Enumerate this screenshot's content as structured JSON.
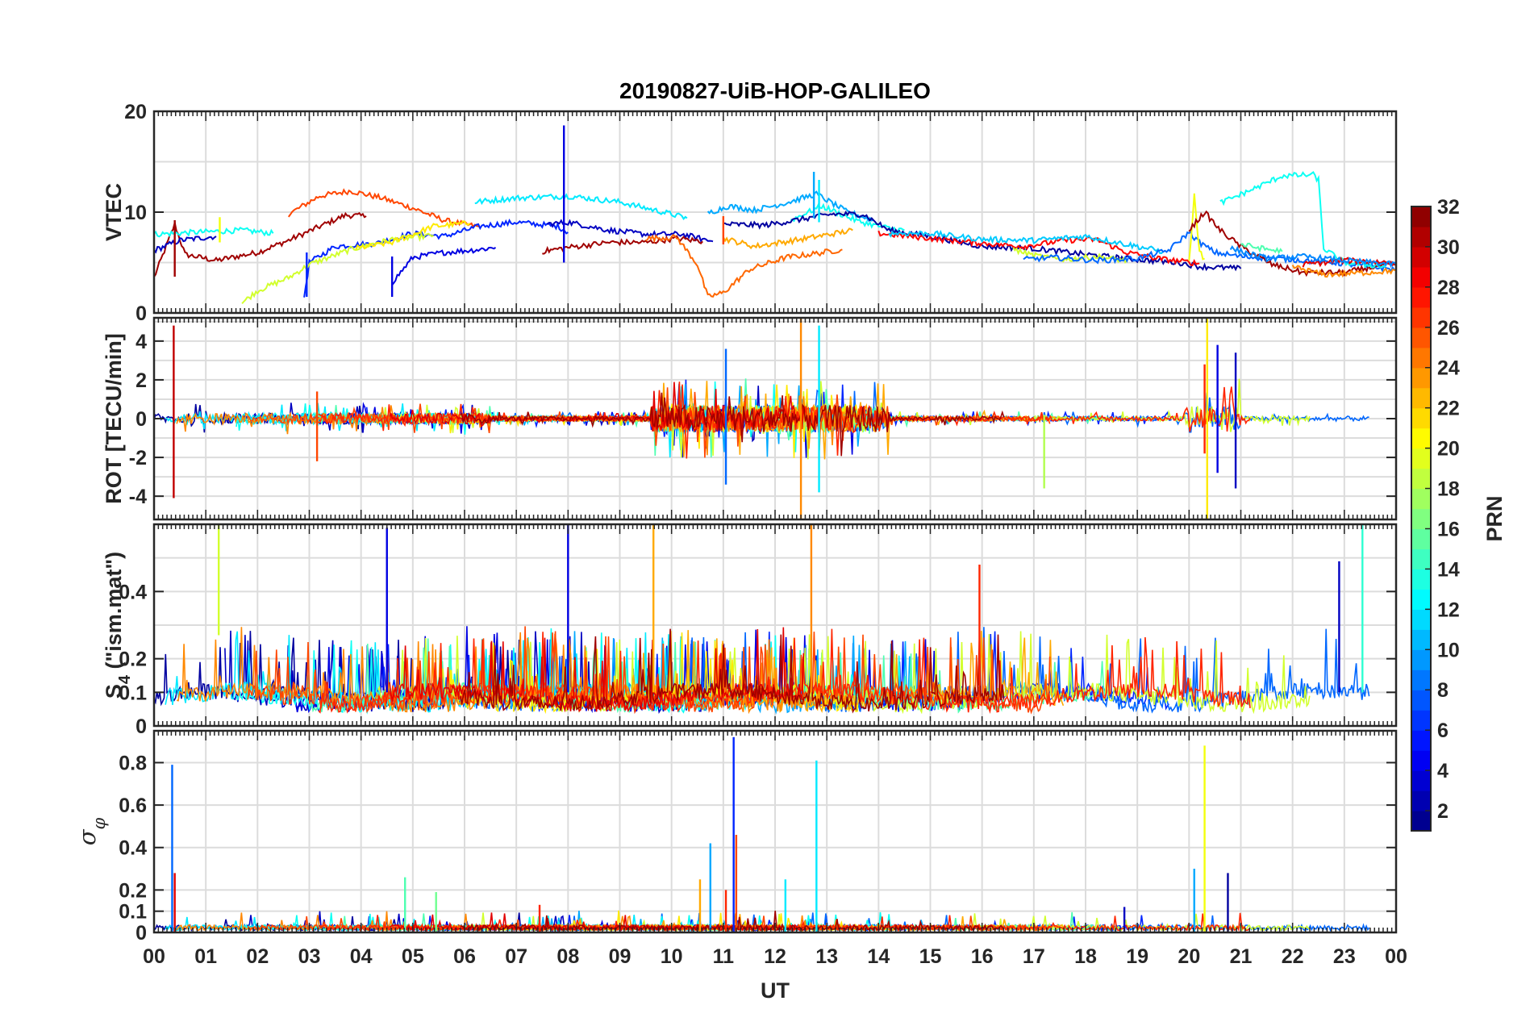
{
  "chart_data": {
    "type": "line",
    "title": "20190827-UiB-HOP-GALILEO",
    "xlabel": "UT",
    "x_ticks": [
      "00",
      "01",
      "02",
      "03",
      "04",
      "05",
      "06",
      "07",
      "08",
      "09",
      "10",
      "11",
      "12",
      "13",
      "14",
      "15",
      "16",
      "17",
      "18",
      "19",
      "20",
      "21",
      "22",
      "23",
      "00"
    ],
    "xlim": [
      0,
      24
    ],
    "panels": [
      {
        "id": "vtec",
        "ylabel": "VTEC",
        "ylim": [
          0,
          20
        ],
        "yticks": [
          {
            "v": 0,
            "label": "0"
          },
          {
            "v": 10,
            "label": "10"
          },
          {
            "v": 20,
            "label": "20"
          }
        ],
        "grid_y": [
          0,
          5,
          10,
          15,
          20
        ]
      },
      {
        "id": "rot",
        "ylabel": "ROT [TECU/min]",
        "ylim": [
          -5.2,
          5.2
        ],
        "yticks": [
          {
            "v": -4,
            "label": "-4"
          },
          {
            "v": -2,
            "label": "-2"
          },
          {
            "v": 0,
            "label": "0"
          },
          {
            "v": 2,
            "label": "2"
          },
          {
            "v": 4,
            "label": "4"
          }
        ],
        "grid_y": [
          -4,
          -3,
          -2,
          -1,
          0,
          1,
          2,
          3,
          4,
          5
        ]
      },
      {
        "id": "s4",
        "ylabel": "S",
        "ylabel_sub": "4",
        "ylabel_rest": " (\"ism.mat\")",
        "ylim": [
          0,
          0.6
        ],
        "yticks": [
          {
            "v": 0,
            "label": "0"
          },
          {
            "v": 0.1,
            "label": "0.1"
          },
          {
            "v": 0.2,
            "label": "0.2"
          },
          {
            "v": 0.4,
            "label": "0.4"
          }
        ],
        "grid_y": [
          0.1,
          0.2,
          0.3,
          0.4,
          0.5,
          0.6
        ]
      },
      {
        "id": "sigma",
        "ylabel": "σ",
        "ylabel_sub": "φ",
        "ylim": [
          0,
          0.95
        ],
        "yticks": [
          {
            "v": 0,
            "label": "0"
          },
          {
            "v": 0.1,
            "label": "0.1"
          },
          {
            "v": 0.2,
            "label": "0.2"
          },
          {
            "v": 0.4,
            "label": "0.4"
          },
          {
            "v": 0.6,
            "label": "0.6"
          },
          {
            "v": 0.8,
            "label": "0.8"
          }
        ],
        "grid_y": [
          0.1,
          0.2,
          0.4,
          0.6,
          0.8
        ]
      }
    ],
    "colorbar": {
      "label": "PRN",
      "range": [
        1,
        32
      ],
      "ticks": [
        "2",
        "4",
        "6",
        "8",
        "10",
        "12",
        "14",
        "16",
        "18",
        "20",
        "22",
        "24",
        "26",
        "28",
        "30",
        "32"
      ],
      "colormap": "jet"
    },
    "vtec_series": [
      {
        "prn": 31,
        "points": [
          [
            0,
            3.5
          ],
          [
            0.4,
            8.8
          ],
          [
            0.6,
            5.8
          ],
          [
            1.2,
            5.2
          ],
          [
            2.0,
            6.0
          ],
          [
            2.6,
            7.2
          ],
          [
            3.3,
            8.8
          ],
          [
            3.7,
            9.7
          ],
          [
            4.1,
            9.6
          ]
        ]
      },
      {
        "prn": 26,
        "points": [
          [
            2.6,
            9.8
          ],
          [
            3.2,
            11.6
          ],
          [
            3.8,
            12.1
          ],
          [
            4.4,
            11.4
          ],
          [
            5.0,
            10.4
          ],
          [
            5.6,
            9.2
          ],
          [
            6.3,
            8.5
          ]
        ]
      },
      {
        "prn": 3,
        "points": [
          [
            0,
            6.2
          ],
          [
            0.5,
            7.2
          ],
          [
            1.2,
            7.6
          ]
        ]
      },
      {
        "prn": 13,
        "points": [
          [
            0,
            7.8
          ],
          [
            0.8,
            8.0
          ],
          [
            1.7,
            8.2
          ],
          [
            2.3,
            7.9
          ]
        ]
      },
      {
        "prn": 6,
        "points": [
          [
            2.9,
            1.6
          ],
          [
            3.0,
            5.0
          ],
          [
            3.5,
            6.6
          ],
          [
            4.3,
            6.9
          ],
          [
            5.0,
            7.9
          ],
          [
            5.6,
            7.6
          ],
          [
            6.3,
            8.6
          ],
          [
            7.0,
            9.0
          ],
          [
            7.8,
            8.6
          ],
          [
            8.0,
            8.0
          ]
        ]
      },
      {
        "prn": 19,
        "points": [
          [
            1.7,
            1.0
          ],
          [
            2.0,
            2.2
          ],
          [
            2.6,
            3.5
          ],
          [
            3.0,
            4.8
          ],
          [
            3.8,
            6.3
          ],
          [
            4.6,
            7.3
          ],
          [
            5.4,
            7.7
          ]
        ]
      },
      {
        "prn": 21,
        "points": [
          [
            3.9,
            6.4
          ],
          [
            4.6,
            7.0
          ],
          [
            5.4,
            8.6
          ],
          [
            6.1,
            8.9
          ]
        ]
      },
      {
        "prn": 4,
        "points": [
          [
            4.6,
            3.0
          ],
          [
            5.0,
            5.5
          ],
          [
            5.6,
            6.0
          ],
          [
            6.3,
            6.3
          ],
          [
            6.6,
            6.5
          ]
        ]
      },
      {
        "prn": 12,
        "points": [
          [
            6.2,
            11.0
          ],
          [
            7.0,
            11.4
          ],
          [
            8.0,
            11.6
          ],
          [
            9.0,
            11.0
          ],
          [
            10.0,
            9.8
          ],
          [
            10.3,
            9.4
          ]
        ]
      },
      {
        "prn": 3,
        "points": [
          [
            7.6,
            8.8
          ],
          [
            8.0,
            9.0
          ],
          [
            8.8,
            8.2
          ],
          [
            9.5,
            7.8
          ],
          [
            10.2,
            7.8
          ],
          [
            10.8,
            7.1
          ]
        ]
      },
      {
        "prn": 31,
        "points": [
          [
            7.5,
            6.1
          ],
          [
            8.0,
            6.5
          ],
          [
            8.8,
            7.0
          ],
          [
            9.5,
            7.0
          ],
          [
            10.1,
            7.4
          ],
          [
            10.6,
            7.1
          ]
        ]
      },
      {
        "prn": 25,
        "points": [
          [
            9.5,
            7.4
          ],
          [
            10.1,
            7.5
          ],
          [
            10.5,
            4.8
          ],
          [
            10.7,
            1.6
          ],
          [
            11.0,
            2.0
          ],
          [
            11.5,
            4.3
          ],
          [
            12.2,
            5.5
          ],
          [
            12.8,
            5.9
          ],
          [
            13.3,
            6.3
          ]
        ]
      },
      {
        "prn": 23,
        "points": [
          [
            11.0,
            7.4
          ],
          [
            11.6,
            6.6
          ],
          [
            12.5,
            7.3
          ],
          [
            13.5,
            8.2
          ]
        ]
      },
      {
        "prn": 10,
        "points": [
          [
            10.7,
            9.9
          ],
          [
            11.1,
            10.6
          ],
          [
            11.6,
            10.2
          ],
          [
            12.2,
            10.9
          ],
          [
            12.8,
            11.8
          ],
          [
            13.4,
            10.0
          ],
          [
            13.9,
            9.2
          ]
        ]
      },
      {
        "prn": 13,
        "points": [
          [
            12.3,
            9.2
          ],
          [
            12.9,
            10.6
          ],
          [
            13.6,
            9.1
          ],
          [
            14.1,
            8.5
          ],
          [
            14.5,
            8.2
          ]
        ]
      },
      {
        "prn": 2,
        "points": [
          [
            11.0,
            8.8
          ],
          [
            11.8,
            8.7
          ],
          [
            12.4,
            9.2
          ],
          [
            13.1,
            9.8
          ],
          [
            13.7,
            9.8
          ],
          [
            14.2,
            8.2
          ],
          [
            15.0,
            7.6
          ],
          [
            16.0,
            6.6
          ],
          [
            17.0,
            6.4
          ],
          [
            18.0,
            5.8
          ],
          [
            19.0,
            5.3
          ],
          [
            19.8,
            5.0
          ],
          [
            20.2,
            4.6
          ],
          [
            21.0,
            4.4
          ]
        ]
      },
      {
        "prn": 28,
        "points": [
          [
            14.0,
            7.9
          ],
          [
            14.8,
            7.5
          ],
          [
            15.8,
            7.0
          ],
          [
            16.8,
            6.6
          ],
          [
            17.6,
            7.2
          ],
          [
            18.2,
            7.3
          ],
          [
            18.8,
            6.0
          ],
          [
            19.4,
            5.4
          ],
          [
            20.2,
            4.9
          ]
        ]
      },
      {
        "prn": 11,
        "points": [
          [
            14.2,
            7.9
          ],
          [
            15.0,
            7.9
          ],
          [
            16.0,
            7.3
          ],
          [
            17.0,
            7.2
          ],
          [
            18.0,
            7.6
          ],
          [
            18.8,
            6.8
          ],
          [
            19.5,
            6.1
          ]
        ]
      },
      {
        "prn": 19,
        "points": [
          [
            16.6,
            6.3
          ],
          [
            17.0,
            5.7
          ],
          [
            17.6,
            5.3
          ],
          [
            18.2,
            5.6
          ],
          [
            18.8,
            5.2
          ]
        ]
      },
      {
        "prn": 8,
        "points": [
          [
            16.8,
            5.3
          ],
          [
            17.4,
            5.5
          ],
          [
            18.2,
            5.2
          ],
          [
            19.0,
            5.4
          ],
          [
            19.6,
            6.2
          ],
          [
            20.0,
            8.0
          ],
          [
            20.2,
            7.0
          ],
          [
            20.5,
            6.0
          ],
          [
            21.0,
            5.6
          ],
          [
            22.0,
            5.3
          ],
          [
            22.8,
            5.0
          ],
          [
            23.5,
            4.6
          ],
          [
            24,
            4.3
          ]
        ]
      },
      {
        "prn": 20,
        "points": [
          [
            20.0,
            5.0
          ],
          [
            20.1,
            11.6
          ],
          [
            20.2,
            6.0
          ],
          [
            20.3,
            5.4
          ]
        ]
      },
      {
        "prn": 31,
        "points": [
          [
            20.0,
            8.2
          ],
          [
            20.3,
            10.0
          ],
          [
            20.6,
            8.2
          ],
          [
            21.0,
            6.6
          ],
          [
            21.6,
            4.8
          ],
          [
            22.2,
            4.0
          ],
          [
            23.0,
            4.0
          ],
          [
            23.6,
            4.6
          ],
          [
            24,
            4.8
          ]
        ]
      },
      {
        "prn": 24,
        "points": [
          [
            22.0,
            4.6
          ],
          [
            22.6,
            3.8
          ],
          [
            23.4,
            4.0
          ],
          [
            24,
            4.2
          ]
        ]
      },
      {
        "prn": 13,
        "points": [
          [
            20.6,
            10.9
          ],
          [
            21.2,
            12.2
          ],
          [
            21.8,
            13.6
          ],
          [
            22.4,
            13.7
          ],
          [
            22.5,
            13.2
          ],
          [
            22.6,
            6.4
          ],
          [
            23.0,
            5.0
          ],
          [
            23.8,
            4.6
          ]
        ]
      },
      {
        "prn": 15,
        "points": [
          [
            21.0,
            6.8
          ],
          [
            21.4,
            6.4
          ],
          [
            21.8,
            6.1
          ]
        ]
      },
      {
        "prn": 29,
        "points": [
          [
            22.2,
            4.8
          ],
          [
            23.0,
            5.2
          ],
          [
            24,
            5.0
          ]
        ]
      },
      {
        "prn": 9,
        "points": [
          [
            20.8,
            6.4
          ],
          [
            21.5,
            5.4
          ],
          [
            22.2,
            5.6
          ],
          [
            23.0,
            5.2
          ],
          [
            24,
            4.8
          ]
        ]
      }
    ],
    "vtec_spikes": [
      {
        "prn": 4,
        "x": 7.92,
        "from": 5.0,
        "to": 18.6
      },
      {
        "prn": 31,
        "x": 0.4,
        "from": 3.6,
        "to": 9.2
      },
      {
        "prn": 10,
        "x": 12.75,
        "from": 9.4,
        "to": 14.0
      },
      {
        "prn": 12,
        "x": 12.85,
        "from": 9.0,
        "to": 13.2
      },
      {
        "prn": 6,
        "x": 2.95,
        "from": 1.6,
        "to": 6.0
      },
      {
        "prn": 4,
        "x": 4.6,
        "from": 1.6,
        "to": 5.6
      },
      {
        "prn": 20,
        "x": 1.27,
        "from": 7.0,
        "to": 9.5
      },
      {
        "prn": 26,
        "x": 11.0,
        "from": 6.8,
        "to": 9.6
      }
    ],
    "rot_spikes": [
      {
        "prn": 30,
        "x": 0.38,
        "from": -4.1,
        "to": 4.8
      },
      {
        "prn": 24,
        "x": 12.5,
        "from": -5.2,
        "to": 5.2
      },
      {
        "prn": 21,
        "x": 20.35,
        "from": -5.2,
        "to": 5.2
      },
      {
        "prn": 12,
        "x": 12.85,
        "from": -3.8,
        "to": 4.8
      },
      {
        "prn": 18,
        "x": 17.2,
        "from": -3.6,
        "to": 0.2
      },
      {
        "prn": 3,
        "x": 20.9,
        "from": -3.6,
        "to": 3.4
      },
      {
        "prn": 8,
        "x": 11.05,
        "from": -3.4,
        "to": 3.6
      },
      {
        "prn": 26,
        "x": 3.15,
        "from": -2.2,
        "to": 1.4
      },
      {
        "prn": 27,
        "x": 20.3,
        "from": -1.8,
        "to": 2.8
      },
      {
        "prn": 4,
        "x": 20.55,
        "from": -2.8,
        "to": 3.8
      }
    ],
    "s4_spikes": [
      {
        "prn": 19,
        "x": 1.25,
        "from": 0.27,
        "to": 0.6
      },
      {
        "prn": 4,
        "x": 4.5,
        "from": 0.1,
        "to": 0.59
      },
      {
        "prn": 4,
        "x": 8.0,
        "from": 0.1,
        "to": 0.6
      },
      {
        "prn": 23,
        "x": 9.65,
        "from": 0.1,
        "to": 0.6
      },
      {
        "prn": 24,
        "x": 12.7,
        "from": 0.1,
        "to": 0.6
      },
      {
        "prn": 14,
        "x": 23.35,
        "from": 0.1,
        "to": 0.6
      },
      {
        "prn": 27,
        "x": 15.95,
        "from": 0.12,
        "to": 0.48
      },
      {
        "prn": 3,
        "x": 22.9,
        "from": 0.1,
        "to": 0.49
      }
    ],
    "sigma_spikes": [
      {
        "prn": 8,
        "x": 0.35,
        "from": 0,
        "to": 0.79
      },
      {
        "prn": 29,
        "x": 0.4,
        "from": 0,
        "to": 0.28
      },
      {
        "prn": 6,
        "x": 11.2,
        "from": 0,
        "to": 0.92
      },
      {
        "prn": 12,
        "x": 12.8,
        "from": 0,
        "to": 0.81
      },
      {
        "prn": 20,
        "x": 20.3,
        "from": 0,
        "to": 0.88
      },
      {
        "prn": 10,
        "x": 10.75,
        "from": 0,
        "to": 0.42
      },
      {
        "prn": 26,
        "x": 11.25,
        "from": 0,
        "to": 0.46
      },
      {
        "prn": 2,
        "x": 20.75,
        "from": 0,
        "to": 0.28
      },
      {
        "prn": 10,
        "x": 20.1,
        "from": 0,
        "to": 0.3
      },
      {
        "prn": 15,
        "x": 4.85,
        "from": 0,
        "to": 0.26
      },
      {
        "prn": 16,
        "x": 5.45,
        "from": 0,
        "to": 0.19
      },
      {
        "prn": 12,
        "x": 12.2,
        "from": 0,
        "to": 0.25
      },
      {
        "prn": 27,
        "x": 11.05,
        "from": 0,
        "to": 0.2
      },
      {
        "prn": 3,
        "x": 18.75,
        "from": 0,
        "to": 0.12
      },
      {
        "prn": 27,
        "x": 7.45,
        "from": 0,
        "to": 0.13
      },
      {
        "prn": 23,
        "x": 10.55,
        "from": 0,
        "to": 0.25
      }
    ]
  }
}
